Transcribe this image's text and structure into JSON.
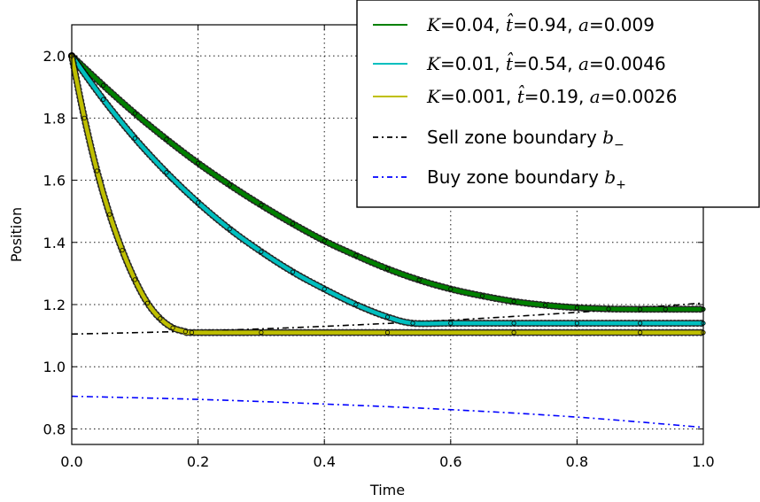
{
  "chart_data": {
    "type": "line",
    "xlabel": "Time",
    "ylabel": "Position",
    "xlim": [
      0.0,
      1.0
    ],
    "ylim": [
      0.75,
      2.1
    ],
    "grid": true,
    "legend_placement": "top-right",
    "xticks": [
      "0.0",
      "0.2",
      "0.4",
      "0.6",
      "0.8",
      "1.0"
    ],
    "yticks": [
      "0.8",
      "1.0",
      "1.2",
      "1.4",
      "1.6",
      "1.8",
      "2.0"
    ],
    "series": [
      {
        "name": "K=0.04, t̂=0.94, a=0.009",
        "legend_parts": {
          "K": "0.04",
          "t": "0.94",
          "a": "0.009"
        },
        "color": "#008000",
        "style": "solid+markers",
        "x": [
          0.0,
          0.05,
          0.1,
          0.15,
          0.2,
          0.25,
          0.3,
          0.35,
          0.4,
          0.45,
          0.5,
          0.55,
          0.6,
          0.65,
          0.7,
          0.75,
          0.8,
          0.85,
          0.9,
          0.94,
          1.0
        ],
        "y": [
          2.0,
          1.905,
          1.815,
          1.732,
          1.655,
          1.585,
          1.52,
          1.46,
          1.405,
          1.358,
          1.315,
          1.279,
          1.25,
          1.228,
          1.21,
          1.198,
          1.19,
          1.186,
          1.185,
          1.185,
          1.185
        ]
      },
      {
        "name": "K=0.01, t̂=0.54, a=0.0046",
        "legend_parts": {
          "K": "0.01",
          "t": "0.54",
          "a": "0.0046"
        },
        "color": "#00bfbf",
        "style": "solid+markers",
        "x": [
          0.0,
          0.05,
          0.1,
          0.15,
          0.2,
          0.25,
          0.3,
          0.35,
          0.4,
          0.45,
          0.5,
          0.54,
          0.6,
          0.7,
          0.8,
          0.9,
          1.0
        ],
        "y": [
          2.0,
          1.86,
          1.735,
          1.625,
          1.528,
          1.443,
          1.37,
          1.305,
          1.25,
          1.2,
          1.16,
          1.14,
          1.14,
          1.14,
          1.14,
          1.14,
          1.14
        ]
      },
      {
        "name": "K=0.001, t̂=0.19, a=0.0026",
        "legend_parts": {
          "K": "0.001",
          "t": "0.19",
          "a": "0.0026"
        },
        "color": "#bfbf00",
        "style": "solid+markers",
        "x": [
          0.0,
          0.02,
          0.04,
          0.06,
          0.08,
          0.1,
          0.12,
          0.14,
          0.16,
          0.18,
          0.19,
          0.3,
          0.5,
          0.7,
          0.9,
          1.0
        ],
        "y": [
          2.0,
          1.8,
          1.63,
          1.49,
          1.375,
          1.28,
          1.205,
          1.155,
          1.125,
          1.113,
          1.11,
          1.11,
          1.11,
          1.11,
          1.11,
          1.11
        ]
      },
      {
        "name": "Sell zone boundary b₋",
        "legend_text": "Sell zone boundary",
        "legend_math": "b",
        "legend_sub": "−",
        "color": "#000000",
        "style": "dashdot",
        "x": [
          0.0,
          0.2,
          0.4,
          0.6,
          0.8,
          1.0
        ],
        "y": [
          1.105,
          1.115,
          1.13,
          1.15,
          1.175,
          1.205
        ]
      },
      {
        "name": "Buy zone boundary b₊",
        "legend_text": "Buy zone boundary",
        "legend_math": "b",
        "legend_sub": "+",
        "color": "#0000ff",
        "style": "dashdot",
        "x": [
          0.0,
          0.2,
          0.4,
          0.6,
          0.8,
          1.0
        ],
        "y": [
          0.905,
          0.895,
          0.88,
          0.862,
          0.838,
          0.805
        ]
      }
    ]
  }
}
